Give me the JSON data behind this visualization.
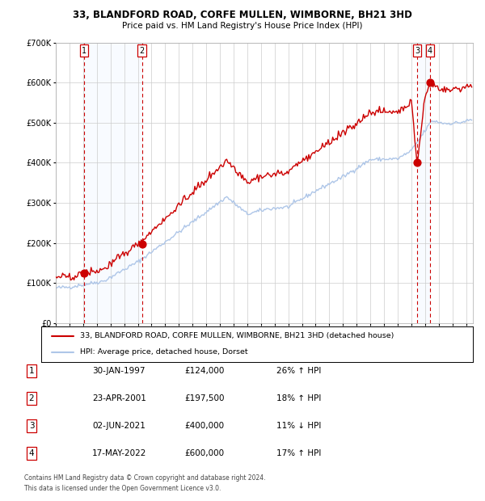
{
  "title1": "33, BLANDFORD ROAD, CORFE MULLEN, WIMBORNE, BH21 3HD",
  "title2": "Price paid vs. HM Land Registry's House Price Index (HPI)",
  "legend1": "33, BLANDFORD ROAD, CORFE MULLEN, WIMBORNE, BH21 3HD (detached house)",
  "legend2": "HPI: Average price, detached house, Dorset",
  "transactions": [
    {
      "num": 1,
      "date": "30-JAN-1997",
      "price": 124000,
      "hpi_pct": "26% ↑ HPI",
      "year": 1997.08
    },
    {
      "num": 2,
      "date": "23-APR-2001",
      "price": 197500,
      "hpi_pct": "18% ↑ HPI",
      "year": 2001.31
    },
    {
      "num": 3,
      "date": "02-JUN-2021",
      "price": 400000,
      "hpi_pct": "11% ↓ HPI",
      "year": 2021.42
    },
    {
      "num": 4,
      "date": "17-MAY-2022",
      "price": 600000,
      "hpi_pct": "17% ↑ HPI",
      "year": 2022.37
    }
  ],
  "footnote1": "Contains HM Land Registry data © Crown copyright and database right 2024.",
  "footnote2": "This data is licensed under the Open Government Licence v3.0.",
  "hpi_color": "#aec6e8",
  "price_color": "#cc0000",
  "shade_color": "#ddeeff",
  "background_color": "#ffffff",
  "grid_color": "#cccccc",
  "ylim": [
    0,
    700000
  ],
  "xlim_start": 1995.0,
  "xlim_end": 2025.5
}
